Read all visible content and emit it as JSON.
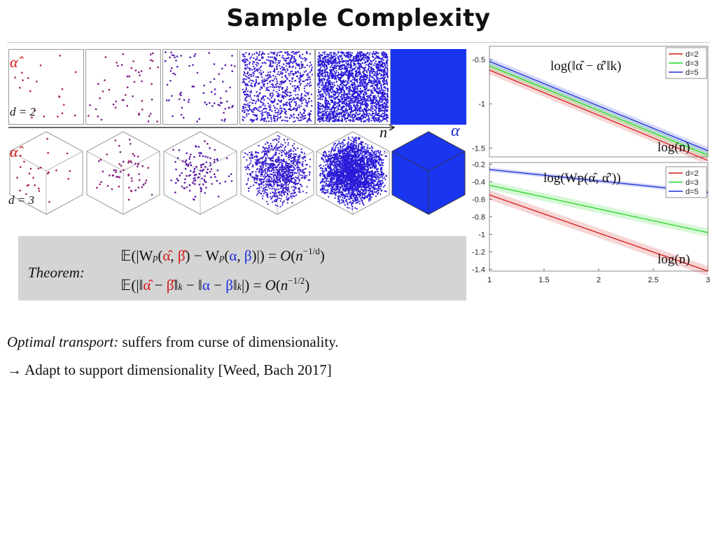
{
  "slide": {
    "title": "Sample Complexity"
  },
  "samples": {
    "alpha_hat_label": "α̂",
    "alpha_label": "α",
    "n_label": "n",
    "d2_label": "d = 2",
    "d3_label": "d = 3"
  },
  "colors": {
    "red": "#d41a1a",
    "green": "#22d822",
    "blue": "#1c2fd8",
    "purple": "#7a1a9a",
    "fill_blue": "#1a35f0"
  },
  "theorem": {
    "label": "Theorem:",
    "eq1": "𝔼(|W",
    "eq2": "𝔼(|‖"
  },
  "text": {
    "line1_italic": "Optimal transport:",
    "line1_rest": " suffers from curse of dimensionality.",
    "line2": "→ Adapt to support dimensionality [Weed, Bach 2017]"
  },
  "chart_data": [
    {
      "type": "line",
      "title": "log(‖α̂ − α̂′‖k)",
      "xlabel": "log(n)",
      "ylim": [
        -1.6,
        -0.35
      ],
      "yticks": [
        "-0.5",
        "-1",
        "-1.5"
      ],
      "grid": false,
      "legend": "top-right",
      "x": [
        1,
        3
      ],
      "series": [
        {
          "name": "d=2",
          "color": "#d41a1a",
          "values": [
            -0.62,
            -1.64
          ]
        },
        {
          "name": "d=3",
          "color": "#22d822",
          "values": [
            -0.57,
            -1.58
          ]
        },
        {
          "name": "d=5",
          "color": "#1c2fd8",
          "values": [
            -0.52,
            -1.53
          ]
        }
      ]
    },
    {
      "type": "line",
      "title": "log(Wp(α̂, α̂′))",
      "xlabel": "log(n)",
      "ylim": [
        -1.42,
        -0.18
      ],
      "yticks": [
        "-0.2",
        "-0.4",
        "-0.6",
        "-0.8",
        "-1",
        "-1.2",
        "-1.4"
      ],
      "xticks": [
        "1",
        "1.5",
        "2",
        "2.5",
        "3"
      ],
      "grid": false,
      "legend": "top-right",
      "x": [
        1,
        3
      ],
      "series": [
        {
          "name": "d=2",
          "color": "#d41a1a",
          "values": [
            -0.55,
            -1.42
          ]
        },
        {
          "name": "d=3",
          "color": "#22d822",
          "values": [
            -0.44,
            -0.98
          ]
        },
        {
          "name": "d=5",
          "color": "#1c2fd8",
          "values": [
            -0.26,
            -0.52
          ]
        }
      ]
    }
  ]
}
